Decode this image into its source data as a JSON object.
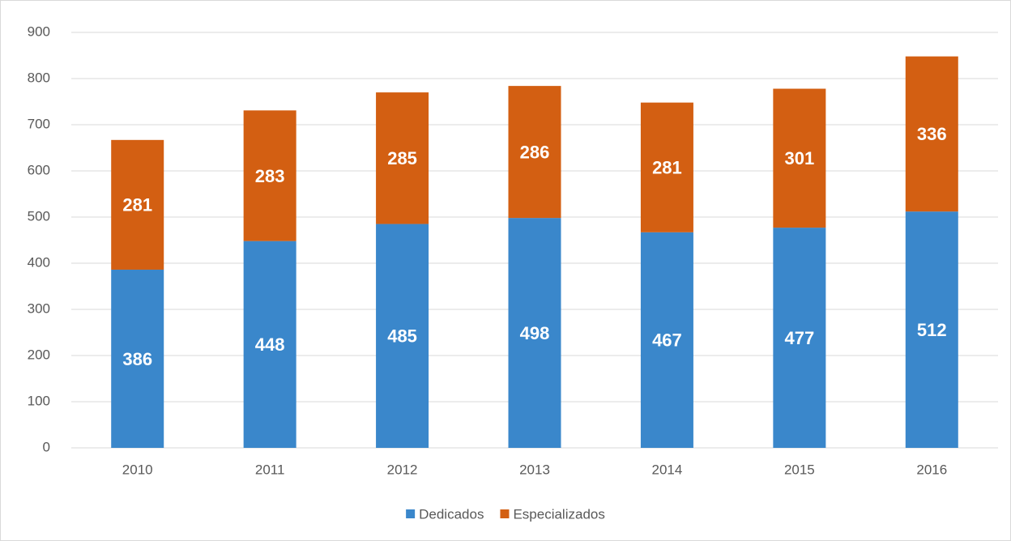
{
  "chart_data": {
    "type": "stacked_bar",
    "categories": [
      "2010",
      "2011",
      "2012",
      "2013",
      "2014",
      "2015",
      "2016"
    ],
    "series": [
      {
        "name": "Dedicados",
        "color": "#3a87cb",
        "values": [
          386,
          448,
          485,
          498,
          467,
          477,
          512
        ]
      },
      {
        "name": "Especializados",
        "color": "#d35f12",
        "values": [
          281,
          283,
          285,
          286,
          281,
          301,
          336
        ]
      }
    ],
    "ylim": [
      0,
      900
    ],
    "yticks": [
      0,
      100,
      200,
      300,
      400,
      500,
      600,
      700,
      800,
      900
    ],
    "grid": true,
    "legend": "bottom"
  }
}
